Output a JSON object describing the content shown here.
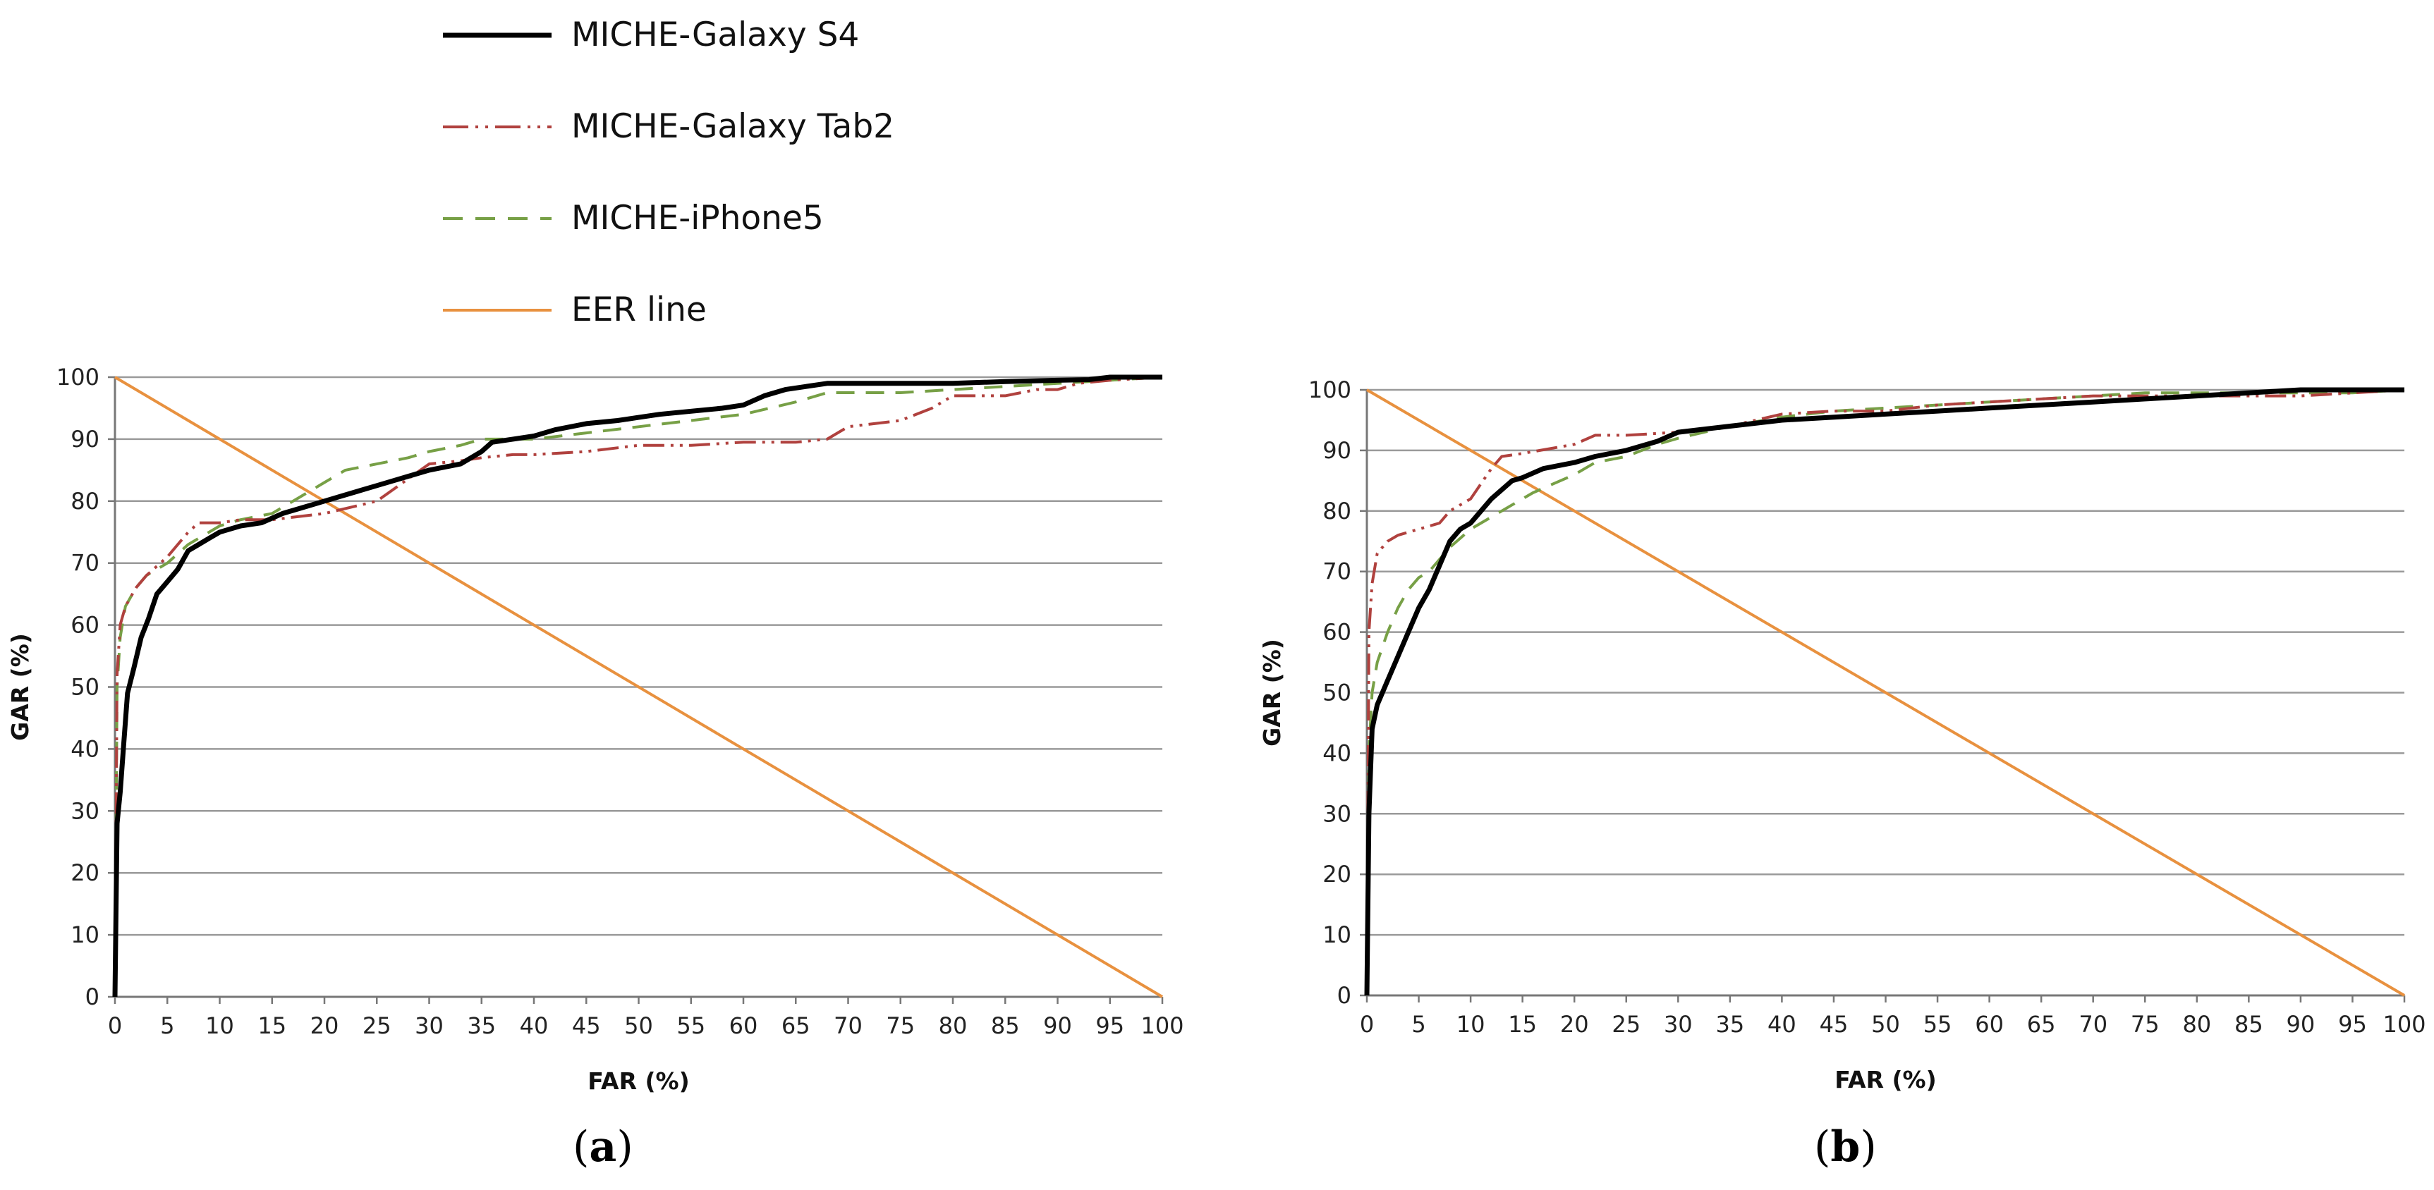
{
  "legend": {
    "items": [
      {
        "label": "MICHE-Galaxy S4",
        "color": "#000000",
        "dash": "solid"
      },
      {
        "label": "MICHE-Galaxy Tab2",
        "color": "#b0413e",
        "dash": "dash-dot-dot"
      },
      {
        "label": "MICHE-iPhone5",
        "color": "#77a046",
        "dash": "dashed"
      },
      {
        "label": "EER line",
        "color": "#e8913f",
        "dash": "solid"
      }
    ]
  },
  "chart_data": [
    {
      "type": "line",
      "panel_label": "a",
      "xlabel": "FAR (%)",
      "ylabel": "GAR (%)",
      "xlim": [
        0,
        100
      ],
      "ylim": [
        0,
        100
      ],
      "xticks": [
        0,
        5,
        10,
        15,
        20,
        25,
        30,
        35,
        40,
        45,
        50,
        55,
        60,
        65,
        70,
        75,
        80,
        85,
        90,
        95,
        100
      ],
      "yticks": [
        0,
        10,
        20,
        30,
        40,
        50,
        60,
        70,
        80,
        90,
        100
      ],
      "grid": "horizontal",
      "series": [
        {
          "name": "MICHE-Galaxy S4",
          "x": [
            0,
            0.2,
            0.5,
            0.8,
            1.2,
            1.8,
            2.5,
            3.2,
            4,
            5,
            6,
            7,
            8,
            9,
            10,
            12,
            14,
            16,
            18,
            20,
            22,
            25,
            28,
            30,
            33,
            35,
            36,
            38,
            40,
            42,
            45,
            48,
            50,
            52,
            55,
            58,
            60,
            62,
            64,
            66,
            68,
            70,
            75,
            80,
            85,
            90,
            93,
            95,
            97,
            100
          ],
          "y": [
            0,
            28,
            33,
            40,
            49,
            53,
            58,
            61,
            65,
            67,
            69,
            72,
            73,
            74,
            75,
            76,
            76.5,
            78,
            79,
            80,
            81,
            82.5,
            84,
            85,
            86,
            88,
            89.5,
            90,
            90.5,
            91.5,
            92.5,
            93,
            93.5,
            94,
            94.5,
            95,
            95.5,
            97,
            98,
            98.5,
            99,
            99,
            99,
            99,
            99.3,
            99.5,
            99.6,
            100,
            100,
            100
          ]
        },
        {
          "name": "MICHE-Galaxy Tab2",
          "x": [
            0,
            0.2,
            0.5,
            1,
            2,
            3,
            5,
            7,
            8,
            10,
            12,
            15,
            20,
            25,
            30,
            33,
            35,
            38,
            40,
            45,
            50,
            55,
            60,
            65,
            68,
            70,
            75,
            78,
            80,
            82,
            85,
            88,
            90,
            92,
            95,
            100
          ],
          "y": [
            0,
            52,
            60,
            63,
            66,
            68,
            71,
            75,
            76.5,
            76.5,
            77,
            77,
            78,
            80,
            86,
            86.5,
            87,
            87.5,
            87.5,
            88,
            89,
            89,
            89.5,
            89.5,
            90,
            92,
            93,
            95,
            97,
            97,
            97,
            98,
            98,
            99,
            99.5,
            100
          ]
        },
        {
          "name": "MICHE-iPhone5",
          "x": [
            0,
            0.2,
            0.5,
            1,
            2,
            3,
            5,
            7,
            10,
            12,
            15,
            17,
            20,
            22,
            25,
            28,
            30,
            33,
            35,
            38,
            40,
            45,
            50,
            55,
            60,
            65,
            68,
            70,
            75,
            80,
            85,
            90,
            95,
            100
          ],
          "y": [
            0,
            50,
            58,
            63,
            66,
            68,
            70,
            73,
            76,
            77,
            78,
            80,
            83,
            85,
            86,
            87,
            88,
            89,
            90,
            90,
            90,
            91,
            92,
            93,
            94,
            96,
            97.5,
            97.5,
            97.5,
            98,
            98.5,
            99,
            99.5,
            100
          ]
        },
        {
          "name": "EER line",
          "x": [
            0,
            100
          ],
          "y": [
            100,
            0
          ]
        }
      ]
    },
    {
      "type": "line",
      "panel_label": "b",
      "xlabel": "FAR (%)",
      "ylabel": "GAR (%)",
      "xlim": [
        0,
        100
      ],
      "ylim": [
        0,
        100
      ],
      "xticks": [
        0,
        5,
        10,
        15,
        20,
        25,
        30,
        35,
        40,
        45,
        50,
        55,
        60,
        65,
        70,
        75,
        80,
        85,
        90,
        95,
        100
      ],
      "yticks": [
        0,
        10,
        20,
        30,
        40,
        50,
        60,
        70,
        80,
        90,
        100
      ],
      "grid": "horizontal",
      "series": [
        {
          "name": "MICHE-Galaxy S4",
          "x": [
            0,
            0.2,
            0.5,
            1,
            2,
            3,
            4,
            5,
            6,
            7,
            8,
            9,
            10,
            11,
            12,
            13,
            14,
            15,
            17,
            20,
            22,
            25,
            28,
            30,
            35,
            40,
            45,
            50,
            55,
            60,
            65,
            70,
            75,
            80,
            85,
            90,
            95,
            100
          ],
          "y": [
            0,
            30,
            44,
            48,
            52,
            56,
            60,
            64,
            67,
            71,
            75,
            77,
            78,
            80,
            82,
            83.5,
            85,
            85.5,
            87,
            88,
            89,
            90,
            91.5,
            93,
            94,
            95,
            95.5,
            96,
            96.5,
            97,
            97.5,
            98,
            98.5,
            99,
            99.5,
            100,
            100,
            100
          ]
        },
        {
          "name": "MICHE-Galaxy Tab2",
          "x": [
            0,
            0.2,
            0.5,
            1,
            2,
            3,
            5,
            7,
            8,
            10,
            12,
            13,
            15,
            20,
            22,
            25,
            30,
            35,
            40,
            45,
            50,
            55,
            60,
            65,
            70,
            75,
            80,
            85,
            90,
            95,
            100
          ],
          "y": [
            0,
            60,
            68,
            73,
            75,
            76,
            77,
            78,
            80,
            82,
            87,
            89,
            89.5,
            91,
            92.5,
            92.5,
            93,
            94,
            96,
            96.5,
            96.5,
            97.5,
            98,
            98.5,
            99,
            99,
            99,
            99,
            99,
            99.5,
            100
          ]
        },
        {
          "name": "MICHE-iPhone5",
          "x": [
            0,
            0.2,
            0.5,
            1,
            2,
            3,
            4,
            5,
            6,
            7,
            8,
            9,
            10,
            12,
            14,
            16,
            18,
            20,
            22,
            25,
            28,
            30,
            35,
            40,
            45,
            50,
            55,
            60,
            65,
            70,
            75,
            80,
            85,
            90,
            95,
            100
          ],
          "y": [
            0,
            40,
            50,
            55,
            60,
            64,
            67,
            69,
            70,
            72,
            74,
            75.5,
            77,
            79,
            81,
            83,
            84.5,
            86,
            88,
            89,
            91,
            92,
            94,
            95.5,
            96.5,
            97,
            97.5,
            98,
            98.5,
            99,
            99.5,
            99.5,
            99.5,
            99.5,
            99.5,
            100
          ]
        },
        {
          "name": "EER line",
          "x": [
            0,
            100
          ],
          "y": [
            100,
            0
          ]
        }
      ]
    }
  ]
}
